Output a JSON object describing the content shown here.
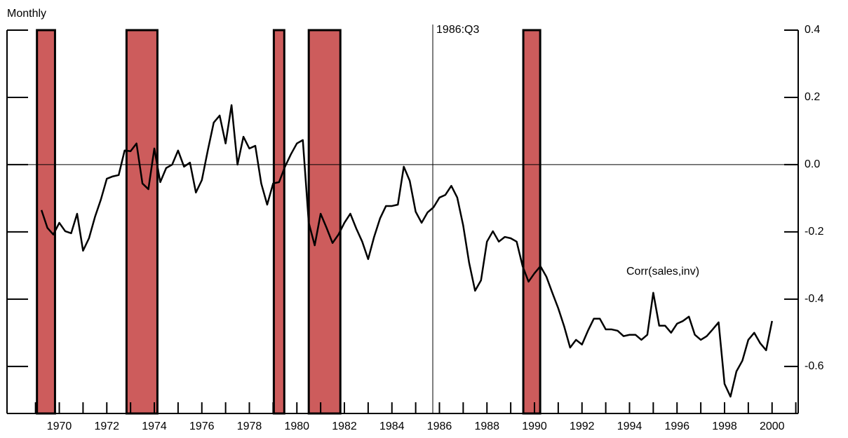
{
  "chart_data": {
    "type": "line",
    "title": "Monthly",
    "series": [
      {
        "name": "Corr(sales,inv)",
        "color": "#000000",
        "x": [
          1969.25,
          1969.5,
          1969.75,
          1970,
          1970.25,
          1970.5,
          1970.75,
          1971,
          1971.25,
          1971.5,
          1971.75,
          1972,
          1972.25,
          1972.5,
          1972.75,
          1973,
          1973.25,
          1973.5,
          1973.75,
          1974,
          1974.25,
          1974.5,
          1974.75,
          1975,
          1975.25,
          1975.5,
          1975.75,
          1976,
          1976.25,
          1976.5,
          1976.75,
          1977,
          1977.25,
          1977.5,
          1977.75,
          1978,
          1978.25,
          1978.5,
          1978.75,
          1979,
          1979.25,
          1979.5,
          1979.75,
          1980,
          1980.25,
          1980.5,
          1980.75,
          1981,
          1981.25,
          1981.5,
          1981.75,
          1982,
          1982.25,
          1982.5,
          1982.75,
          1983,
          1983.25,
          1983.5,
          1983.75,
          1984,
          1984.25,
          1984.5,
          1984.75,
          1985,
          1985.25,
          1985.5,
          1985.75,
          1986,
          1986.25,
          1986.5,
          1986.75,
          1987,
          1987.25,
          1987.5,
          1987.75,
          1988,
          1988.25,
          1988.5,
          1988.75,
          1989,
          1989.25,
          1989.5,
          1989.75,
          1990,
          1990.25,
          1990.5,
          1990.75,
          1991,
          1991.25,
          1991.5,
          1991.75,
          1992,
          1992.25,
          1992.5,
          1992.75,
          1993,
          1993.25,
          1993.5,
          1993.75,
          1994,
          1994.25,
          1994.5,
          1994.75,
          1995,
          1995.25,
          1995.5,
          1995.75,
          1996,
          1996.25,
          1996.5,
          1996.75,
          1997,
          1997.25,
          1997.5,
          1997.75,
          1998,
          1998.25,
          1998.5,
          1998.75,
          1999,
          1999.25,
          1999.5,
          1999.75,
          2000
        ],
        "values": [
          -0.135,
          -0.188,
          -0.208,
          -0.173,
          -0.198,
          -0.204,
          -0.146,
          -0.256,
          -0.219,
          -0.156,
          -0.104,
          -0.042,
          -0.035,
          -0.031,
          0.042,
          0.04,
          0.063,
          -0.056,
          -0.073,
          0.048,
          -0.052,
          -0.01,
          0.0,
          0.042,
          -0.006,
          0.006,
          -0.083,
          -0.046,
          0.042,
          0.125,
          0.146,
          0.063,
          0.177,
          0.0,
          0.083,
          0.048,
          0.056,
          -0.056,
          -0.119,
          -0.056,
          -0.052,
          -0.006,
          0.031,
          0.063,
          0.073,
          -0.173,
          -0.24,
          -0.146,
          -0.188,
          -0.233,
          -0.208,
          -0.173,
          -0.146,
          -0.19,
          -0.229,
          -0.281,
          -0.215,
          -0.16,
          -0.123,
          -0.123,
          -0.119,
          -0.006,
          -0.048,
          -0.14,
          -0.173,
          -0.142,
          -0.127,
          -0.098,
          -0.09,
          -0.063,
          -0.098,
          -0.181,
          -0.292,
          -0.375,
          -0.344,
          -0.229,
          -0.198,
          -0.229,
          -0.215,
          -0.219,
          -0.229,
          -0.302,
          -0.348,
          -0.323,
          -0.302,
          -0.333,
          -0.381,
          -0.427,
          -0.481,
          -0.544,
          -0.521,
          -0.535,
          -0.494,
          -0.458,
          -0.458,
          -0.49,
          -0.49,
          -0.494,
          -0.51,
          -0.506,
          -0.506,
          -0.521,
          -0.506,
          -0.381,
          -0.479,
          -0.479,
          -0.5,
          -0.473,
          -0.465,
          -0.452,
          -0.506,
          -0.521,
          -0.51,
          -0.49,
          -0.469,
          -0.652,
          -0.69,
          -0.615,
          -0.583,
          -0.521,
          -0.5,
          -0.531,
          -0.552,
          -0.465
        ]
      }
    ],
    "xlim": [
      1967.8,
      2001.1
    ],
    "xticks": [
      1970,
      1972,
      1974,
      1976,
      1978,
      1980,
      1982,
      1984,
      1986,
      1988,
      1990,
      1992,
      1994,
      1996,
      1998,
      2000
    ],
    "xminor_ticks": [
      1969,
      1971,
      1973,
      1975,
      1977,
      1979,
      1981,
      1983,
      1985,
      1987,
      1989,
      1991,
      1993,
      1995,
      1997,
      1999,
      2001
    ],
    "ylim": [
      -0.74,
      0.4
    ],
    "yticks": [
      0.4,
      0.2,
      {
        "value": 0,
        "label": "0.0"
      },
      -0.2,
      -0.4,
      -0.6
    ],
    "y_axis_side": "right",
    "zero_line": true,
    "shaded_periods": [
      [
        1969.06,
        1969.82
      ],
      [
        1972.83,
        1974.13
      ],
      [
        1979.03,
        1979.47
      ],
      [
        1980.5,
        1981.83
      ],
      [
        1989.53,
        1990.24
      ]
    ],
    "shade_color": "#cd5c5c",
    "vline": {
      "x": 1985.72,
      "label": "1986:Q3"
    }
  }
}
